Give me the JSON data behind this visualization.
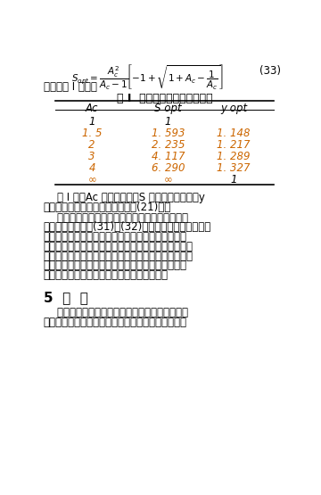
{
  "bg_color": "#ffffff",
  "table_title": "表 I  优化衰减因子与闭环增益",
  "col_headers": [
    "Ac",
    "S opt",
    "y opt"
  ],
  "table_data": [
    [
      "1",
      "1",
      ""
    ],
    [
      "1. 5",
      "1. 593",
      "1. 148"
    ],
    [
      "2",
      "2. 235",
      "1. 217"
    ],
    [
      "3",
      "4. 117",
      "1. 289"
    ],
    [
      "4",
      "6. 290",
      "1. 327"
    ],
    [
      "∞",
      "∞",
      "1"
    ]
  ],
  "row_colors": [
    [
      "#000000",
      "#000000",
      "#000000"
    ],
    [
      "#cc6600",
      "#cc6600",
      "#cc6600"
    ],
    [
      "#cc6600",
      "#cc6600",
      "#cc6600"
    ],
    [
      "#cc6600",
      "#cc6600",
      "#cc6600"
    ],
    [
      "#cc6600",
      "#cc6600",
      "#cc6600"
    ],
    [
      "#cc6600",
      "#cc6600",
      "#000000"
    ]
  ],
  "line2": "其解如表 I 所示。",
  "para1_indent": "    表 I 中，Ac 为运放增益，S 是优化衰减因子，y",
  "para1_line2": "是优化衰减指数，三者的关系满足(21)式。",
  "para2_lines": [
    "    随着闭环增益的上升，优化衰减因子与闭环增益",
    "的比値也上升。在(31)和(32)式中也提到，增加中间级",
    "的增益可以减小功耗。该分析结果只有在速度很低时",
    "才是正确的。速度较高时，增益的优化値减小，因为在",
    "高速下很难设计出高增益的放大器。当速度非常高时，",
    "由于用非常小的反馈电容减小反馈因子，而减小的反",
    "馈因子会减小速度，衰减因子的优化値减小。"
  ],
  "section_title": "5  结  论",
  "para3_lines": [
    "    在低电压时，热噪声对高分辨率流水线模拟技术",
    "换器变得非常重要。为了使功耗达到优化，可以在满"
  ],
  "orange": "#cc6600",
  "black": "#000000"
}
